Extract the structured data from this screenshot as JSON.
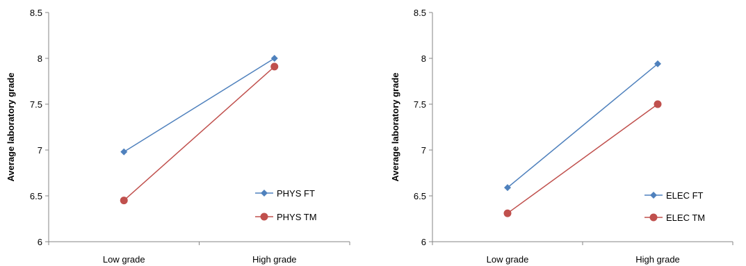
{
  "chart_data": [
    {
      "type": "line",
      "ylabel": "Average laboratory grade",
      "xlabel": "",
      "categories": [
        "Low grade",
        "High grade"
      ],
      "ylim": [
        6,
        8.5
      ],
      "yticks": [
        6,
        6.5,
        7,
        7.5,
        8,
        8.5
      ],
      "ytick_labels": [
        "6",
        "6.5",
        "7",
        "7.5",
        "8",
        "8.5"
      ],
      "grid": false,
      "legend_position": "bottom-right",
      "series": [
        {
          "name": "PHYS FT",
          "values": [
            6.98,
            8.0
          ],
          "color": "#4F81BD",
          "marker": "diamond"
        },
        {
          "name": "PHYS TM",
          "values": [
            6.45,
            7.91
          ],
          "color": "#C0504D",
          "marker": "circle"
        }
      ]
    },
    {
      "type": "line",
      "ylabel": "Average laboratory grade",
      "xlabel": "",
      "categories": [
        "Low grade",
        "High grade"
      ],
      "ylim": [
        6,
        8.5
      ],
      "yticks": [
        6,
        6.5,
        7,
        7.5,
        8,
        8.5
      ],
      "ytick_labels": [
        "6",
        "6.5",
        "7",
        "7.5",
        "8",
        "8.5"
      ],
      "grid": false,
      "legend_position": "bottom-right",
      "series": [
        {
          "name": "ELEC FT",
          "values": [
            6.59,
            7.94
          ],
          "color": "#4F81BD",
          "marker": "diamond"
        },
        {
          "name": "ELEC TM",
          "values": [
            6.31,
            7.5
          ],
          "color": "#C0504D",
          "marker": "circle"
        }
      ]
    }
  ]
}
